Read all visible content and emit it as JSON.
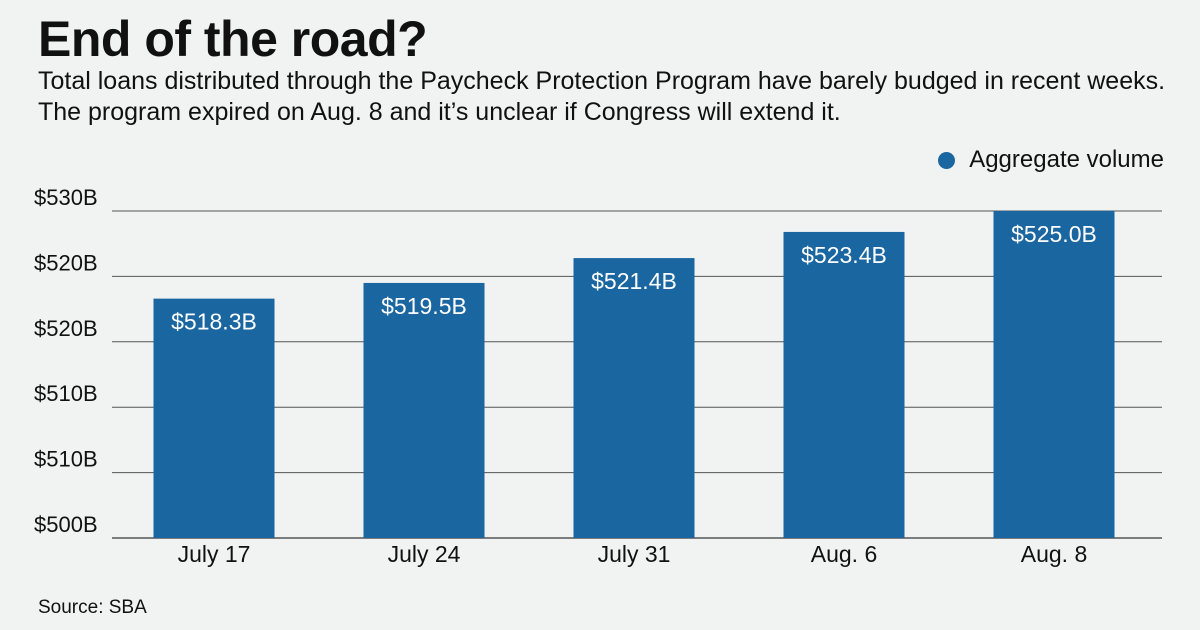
{
  "title": "End of the road?",
  "subtitle": "Total loans distributed through the Paycheck Protection Program have barely budged in recent weeks. The program expired on Aug. 8 and it’s unclear if Congress will extend it.",
  "source": "Source: SBA",
  "chart_data": {
    "type": "bar",
    "categories": [
      "July 17",
      "July 24",
      "July 31",
      "Aug. 6",
      "Aug. 8"
    ],
    "series": [
      {
        "name": "Aggregate volume",
        "values": [
          518.3,
          519.5,
          521.4,
          523.4,
          525.0
        ],
        "data_labels": [
          "$518.3B",
          "$519.5B",
          "$521.4B",
          "$523.4B",
          "$525.0B"
        ]
      }
    ],
    "y_tick_labels": [
      "$500B",
      "$510B",
      "$510B",
      "$520B",
      "$520B",
      "$530B"
    ],
    "ylim": [
      500,
      530
    ],
    "bar_axis_min": 500,
    "bar_axis_max": 525,
    "grid": true,
    "legend": "top-right",
    "colors": {
      "bar": "#1a66a0",
      "grid": "#555555",
      "background": "#f1f2f2"
    }
  }
}
